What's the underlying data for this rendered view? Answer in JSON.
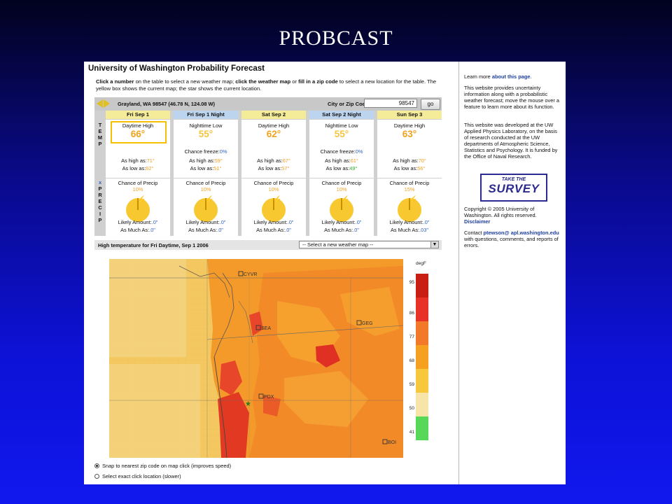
{
  "slide_title": "PROBCAST",
  "header": {
    "title": "University of Washington Probability Forecast",
    "instructions_a": "Click a number",
    "instructions_b": " on the table to select a new weather map; ",
    "instructions_c": "click the weather map",
    "instructions_d": " or ",
    "instructions_e": "fill in a zip code",
    "instructions_f": " to select a new location for the table. The yellow box shows the current map; the star shows the current location."
  },
  "location": {
    "name": "Grayland, WA 98547 (46.78 N, 124.08 W)",
    "zip_label": "City or Zip Code:",
    "zip_value": "98547",
    "go_label": "go"
  },
  "row_labels": {
    "temp": [
      "T",
      "E",
      "M",
      "P"
    ],
    "precip": [
      "x",
      "P",
      "R",
      "E",
      "C",
      "I",
      "P"
    ]
  },
  "days": [
    {
      "header": "Fri Sep 1",
      "kind": "day",
      "temp_label": "Daytime High",
      "temp": "66°",
      "freeze_label": "",
      "freeze": "",
      "high_label": "As high as:",
      "high": "71°",
      "low_label": "As low as:",
      "low": "62°",
      "precip_label": "Chance of Precip",
      "precip": "10%",
      "likely_label": "Likely Amount:",
      "likely": ".0\"",
      "much_label": "As Much As:",
      "much": ".0\""
    },
    {
      "header": "Fri Sep 1 Night",
      "kind": "night",
      "temp_label": "Nighttime Low",
      "temp": "55°",
      "freeze_label": "Chance freeze:",
      "freeze": "0%",
      "high_label": "As high as:",
      "high": "59°",
      "low_label": "As low as:",
      "low": "51°",
      "precip_label": "Chance of Precip",
      "precip": "10%",
      "likely_label": "Likely Amount:",
      "likely": ".0\"",
      "much_label": "As Much As:",
      "much": ".0\""
    },
    {
      "header": "Sat Sep 2",
      "kind": "day",
      "temp_label": "Daytime High",
      "temp": "62°",
      "freeze_label": "",
      "freeze": "",
      "high_label": "As high as:",
      "high": "67°",
      "low_label": "As low as:",
      "low": "57°",
      "precip_label": "Chance of Precip",
      "precip": "10%",
      "likely_label": "Likely Amount:",
      "likely": ".0\"",
      "much_label": "As Much As:",
      "much": ".0\""
    },
    {
      "header": "Sat Sep 2 Night",
      "kind": "night",
      "temp_label": "Nighttime Low",
      "temp": "55°",
      "freeze_label": "Chance freeze:",
      "freeze": "0%",
      "high_label": "As high as:",
      "high": "61°",
      "low_label": "As low as:",
      "low": "49°",
      "precip_label": "Chance of Precip",
      "precip": "10%",
      "likely_label": "Likely Amount:",
      "likely": ".0\"",
      "much_label": "As Much As:",
      "much": ".0\""
    },
    {
      "header": "Sun Sep 3",
      "kind": "day",
      "temp_label": "Daytime High",
      "temp": "63°",
      "freeze_label": "",
      "freeze": "",
      "high_label": "As high as:",
      "high": "70°",
      "low_label": "As low as:",
      "low": "56°",
      "precip_label": "Chance of Precip",
      "precip": "15%",
      "likely_label": "Likely Amount:",
      "likely": ".0\"",
      "much_label": "As Much As:",
      "much": ".03\""
    }
  ],
  "map": {
    "caption": "High temperature for Fri Daytime, Sep 1 2006",
    "select_value": "-- Select a new weather map --",
    "cities": [
      "CYVR",
      "SEA",
      "GEG",
      "PDX",
      "BOI"
    ],
    "legend_unit": "degF",
    "legend_ticks": [
      "95",
      "86",
      "77",
      "68",
      "59",
      "50",
      "41"
    ],
    "legend_colors": [
      "#c81e14",
      "#e83228",
      "#f2782a",
      "#f5a020",
      "#f8c83c",
      "#f6e4a8",
      "#58d858"
    ]
  },
  "radios": [
    {
      "label": "Snap to nearest zip code on map click (improves speed)",
      "checked": true
    },
    {
      "label": "Select exact click location (slower)",
      "checked": false
    }
  ],
  "sidebar": {
    "learn_prefix": "Learn more ",
    "learn_link": "about this page",
    "learn_suffix": ".",
    "p1": "This website provides uncertainty information along with a probabilistic weather forecast; move the mouse over a feature to learn more about its function.",
    "p2": "This website was developed at the UW Applied Physics Laboratory, on the basis of research conducted at the UW departments of Atmospheric Science, Statistics and Psychology. It is funded by the Office of Naval Research.",
    "survey_top": "TAKE THE",
    "survey_main": "SURVEY",
    "copyright": "Copyright © 2005 University of Washington. All rights reserved.",
    "disclaimer": "Disclaimer",
    "contact_prefix": "Contact ",
    "contact_link": "ptewson@ apl.washington.edu",
    "contact_suffix": " with questions, comments, and reports of errors."
  }
}
